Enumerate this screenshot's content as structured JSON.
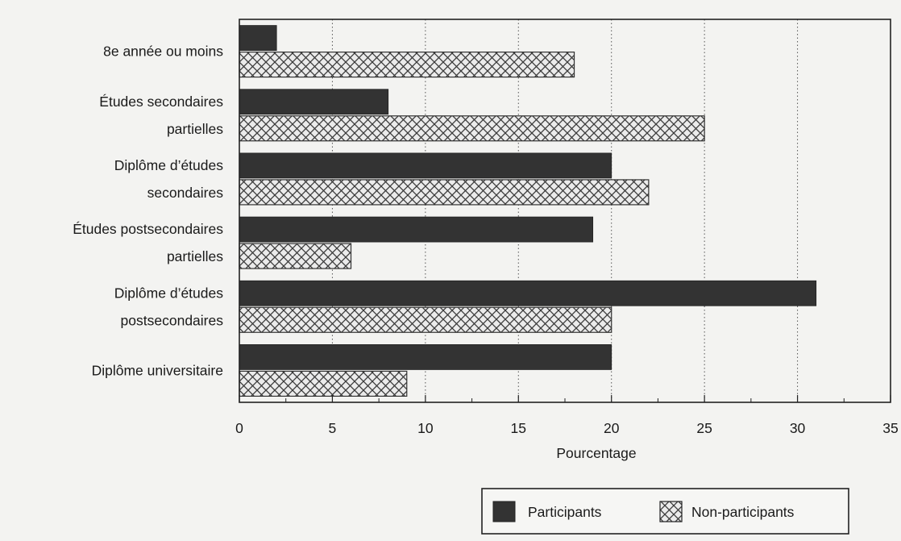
{
  "chart_data": {
    "type": "bar",
    "orientation": "horizontal",
    "title": "",
    "xlabel": "Pourcentage",
    "ylabel": "",
    "xlim": [
      0,
      35
    ],
    "xticks": [
      0,
      5,
      10,
      15,
      20,
      25,
      30,
      35
    ],
    "grid": "vertical dotted",
    "legend_position": "bottom-right",
    "categories": [
      [
        "8e année ou moins"
      ],
      [
        "Études secondaires",
        "partielles"
      ],
      [
        "Diplôme d’études",
        "secondaires"
      ],
      [
        "Études postsecondaires",
        "partielles"
      ],
      [
        "Diplôme d’études",
        "postsecondaires"
      ],
      [
        "Diplôme universitaire"
      ]
    ],
    "series": [
      {
        "name": "Participants",
        "values": [
          2,
          8,
          20,
          19,
          31,
          20
        ],
        "color": "#333333",
        "pattern": "solid"
      },
      {
        "name": "Non-participants",
        "values": [
          18,
          25,
          22,
          6,
          20,
          9
        ],
        "color": "#e6e6e6",
        "pattern": "crosshatch"
      }
    ]
  }
}
